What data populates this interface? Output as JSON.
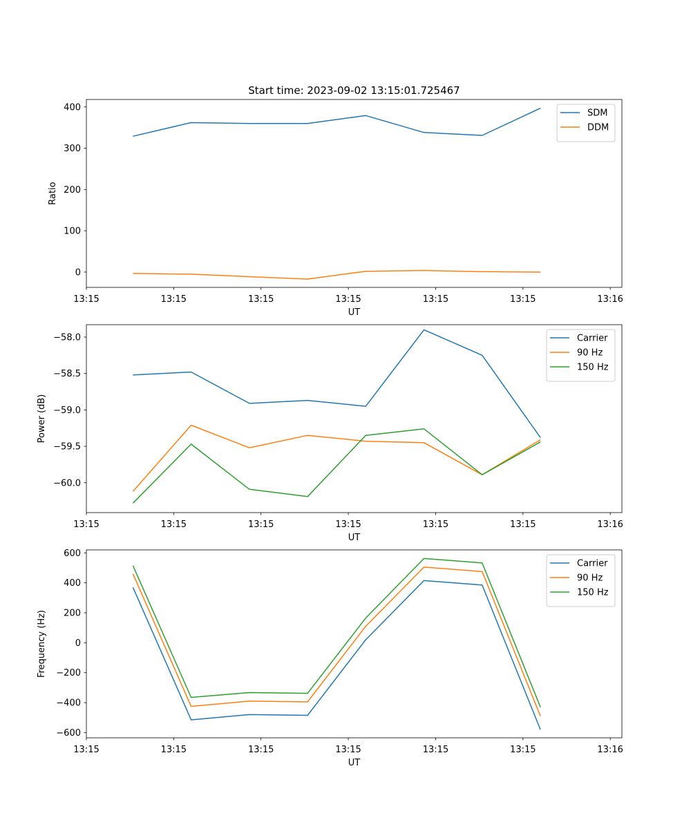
{
  "title": "Start time: 2023-09-02 13:15:01.725467",
  "colors": {
    "blue": "#1f77b4",
    "orange": "#ff7f0e",
    "green": "#2ca02c"
  },
  "chart_data": [
    {
      "type": "line",
      "title": "Start time: 2023-09-02 13:15:01.725467",
      "xlabel": "UT",
      "ylabel": "Ratio",
      "x": [
        1,
        2,
        3,
        4,
        5,
        6,
        7,
        8
      ],
      "xlim": [
        0.2,
        9.4
      ],
      "xticks": [
        0.2,
        1.7,
        3.2,
        4.7,
        6.2,
        7.7,
        9.2
      ],
      "xtick_labels": [
        "13:15",
        "13:15",
        "13:15",
        "13:15",
        "13:15",
        "13:15",
        "13:16"
      ],
      "ylim": [
        -37,
        418
      ],
      "yticks": [
        0,
        100,
        200,
        300,
        400
      ],
      "ytick_labels": [
        "0",
        "100",
        "200",
        "300",
        "400"
      ],
      "legend": "top-right",
      "series": [
        {
          "name": "SDM",
          "color": "#1f77b4",
          "values": [
            329,
            362,
            360,
            360,
            379,
            338,
            331,
            397
          ]
        },
        {
          "name": "DDM",
          "color": "#ff7f0e",
          "values": [
            -3,
            -5,
            -11,
            -17,
            2,
            4,
            1,
            0
          ]
        }
      ]
    },
    {
      "type": "line",
      "title": "",
      "xlabel": "UT",
      "ylabel": "Power (dB)",
      "x": [
        1,
        2,
        3,
        4,
        5,
        6,
        7,
        8
      ],
      "xlim": [
        0.2,
        9.4
      ],
      "xticks": [
        0.2,
        1.7,
        3.2,
        4.7,
        6.2,
        7.7,
        9.2
      ],
      "xtick_labels": [
        "13:15",
        "13:15",
        "13:15",
        "13:15",
        "13:15",
        "13:15",
        "13:16"
      ],
      "ylim": [
        -60.41,
        -57.83
      ],
      "yticks": [
        -60.0,
        -59.5,
        -59.0,
        -58.5,
        -58.0
      ],
      "ytick_labels": [
        "−60.0",
        "−59.5",
        "−59.0",
        "−58.5",
        "−58.0"
      ],
      "legend": "top-right",
      "series": [
        {
          "name": "Carrier",
          "color": "#1f77b4",
          "values": [
            -58.52,
            -58.48,
            -58.91,
            -58.87,
            -58.95,
            -57.9,
            -58.25,
            -59.38
          ]
        },
        {
          "name": "90 Hz",
          "color": "#ff7f0e",
          "values": [
            -60.12,
            -59.21,
            -59.52,
            -59.35,
            -59.43,
            -59.45,
            -59.89,
            -59.41
          ]
        },
        {
          "name": "150 Hz",
          "color": "#2ca02c",
          "values": [
            -60.28,
            -59.47,
            -60.09,
            -60.19,
            -59.35,
            -59.26,
            -59.89,
            -59.44
          ]
        }
      ]
    },
    {
      "type": "line",
      "title": "",
      "xlabel": "UT",
      "ylabel": "Frequency (Hz)",
      "x": [
        1,
        2,
        3,
        4,
        5,
        6,
        7,
        8
      ],
      "xlim": [
        0.2,
        9.4
      ],
      "xticks": [
        0.2,
        1.7,
        3.2,
        4.7,
        6.2,
        7.7,
        9.2
      ],
      "xtick_labels": [
        "13:15",
        "13:15",
        "13:15",
        "13:15",
        "13:15",
        "13:15",
        "13:16"
      ],
      "ylim": [
        -635,
        620
      ],
      "yticks": [
        -600,
        -400,
        -200,
        0,
        200,
        400,
        600
      ],
      "ytick_labels": [
        "−600",
        "−400",
        "−200",
        "0",
        "200",
        "400",
        "600"
      ],
      "legend": "top-right",
      "series": [
        {
          "name": "Carrier",
          "color": "#1f77b4",
          "values": [
            370,
            -515,
            -480,
            -485,
            20,
            415,
            385,
            -580
          ]
        },
        {
          "name": "90 Hz",
          "color": "#ff7f0e",
          "values": [
            460,
            -425,
            -390,
            -395,
            110,
            505,
            475,
            -490
          ]
        },
        {
          "name": "150 Hz",
          "color": "#2ca02c",
          "values": [
            515,
            -365,
            -333,
            -338,
            165,
            563,
            533,
            -430
          ]
        }
      ]
    }
  ]
}
